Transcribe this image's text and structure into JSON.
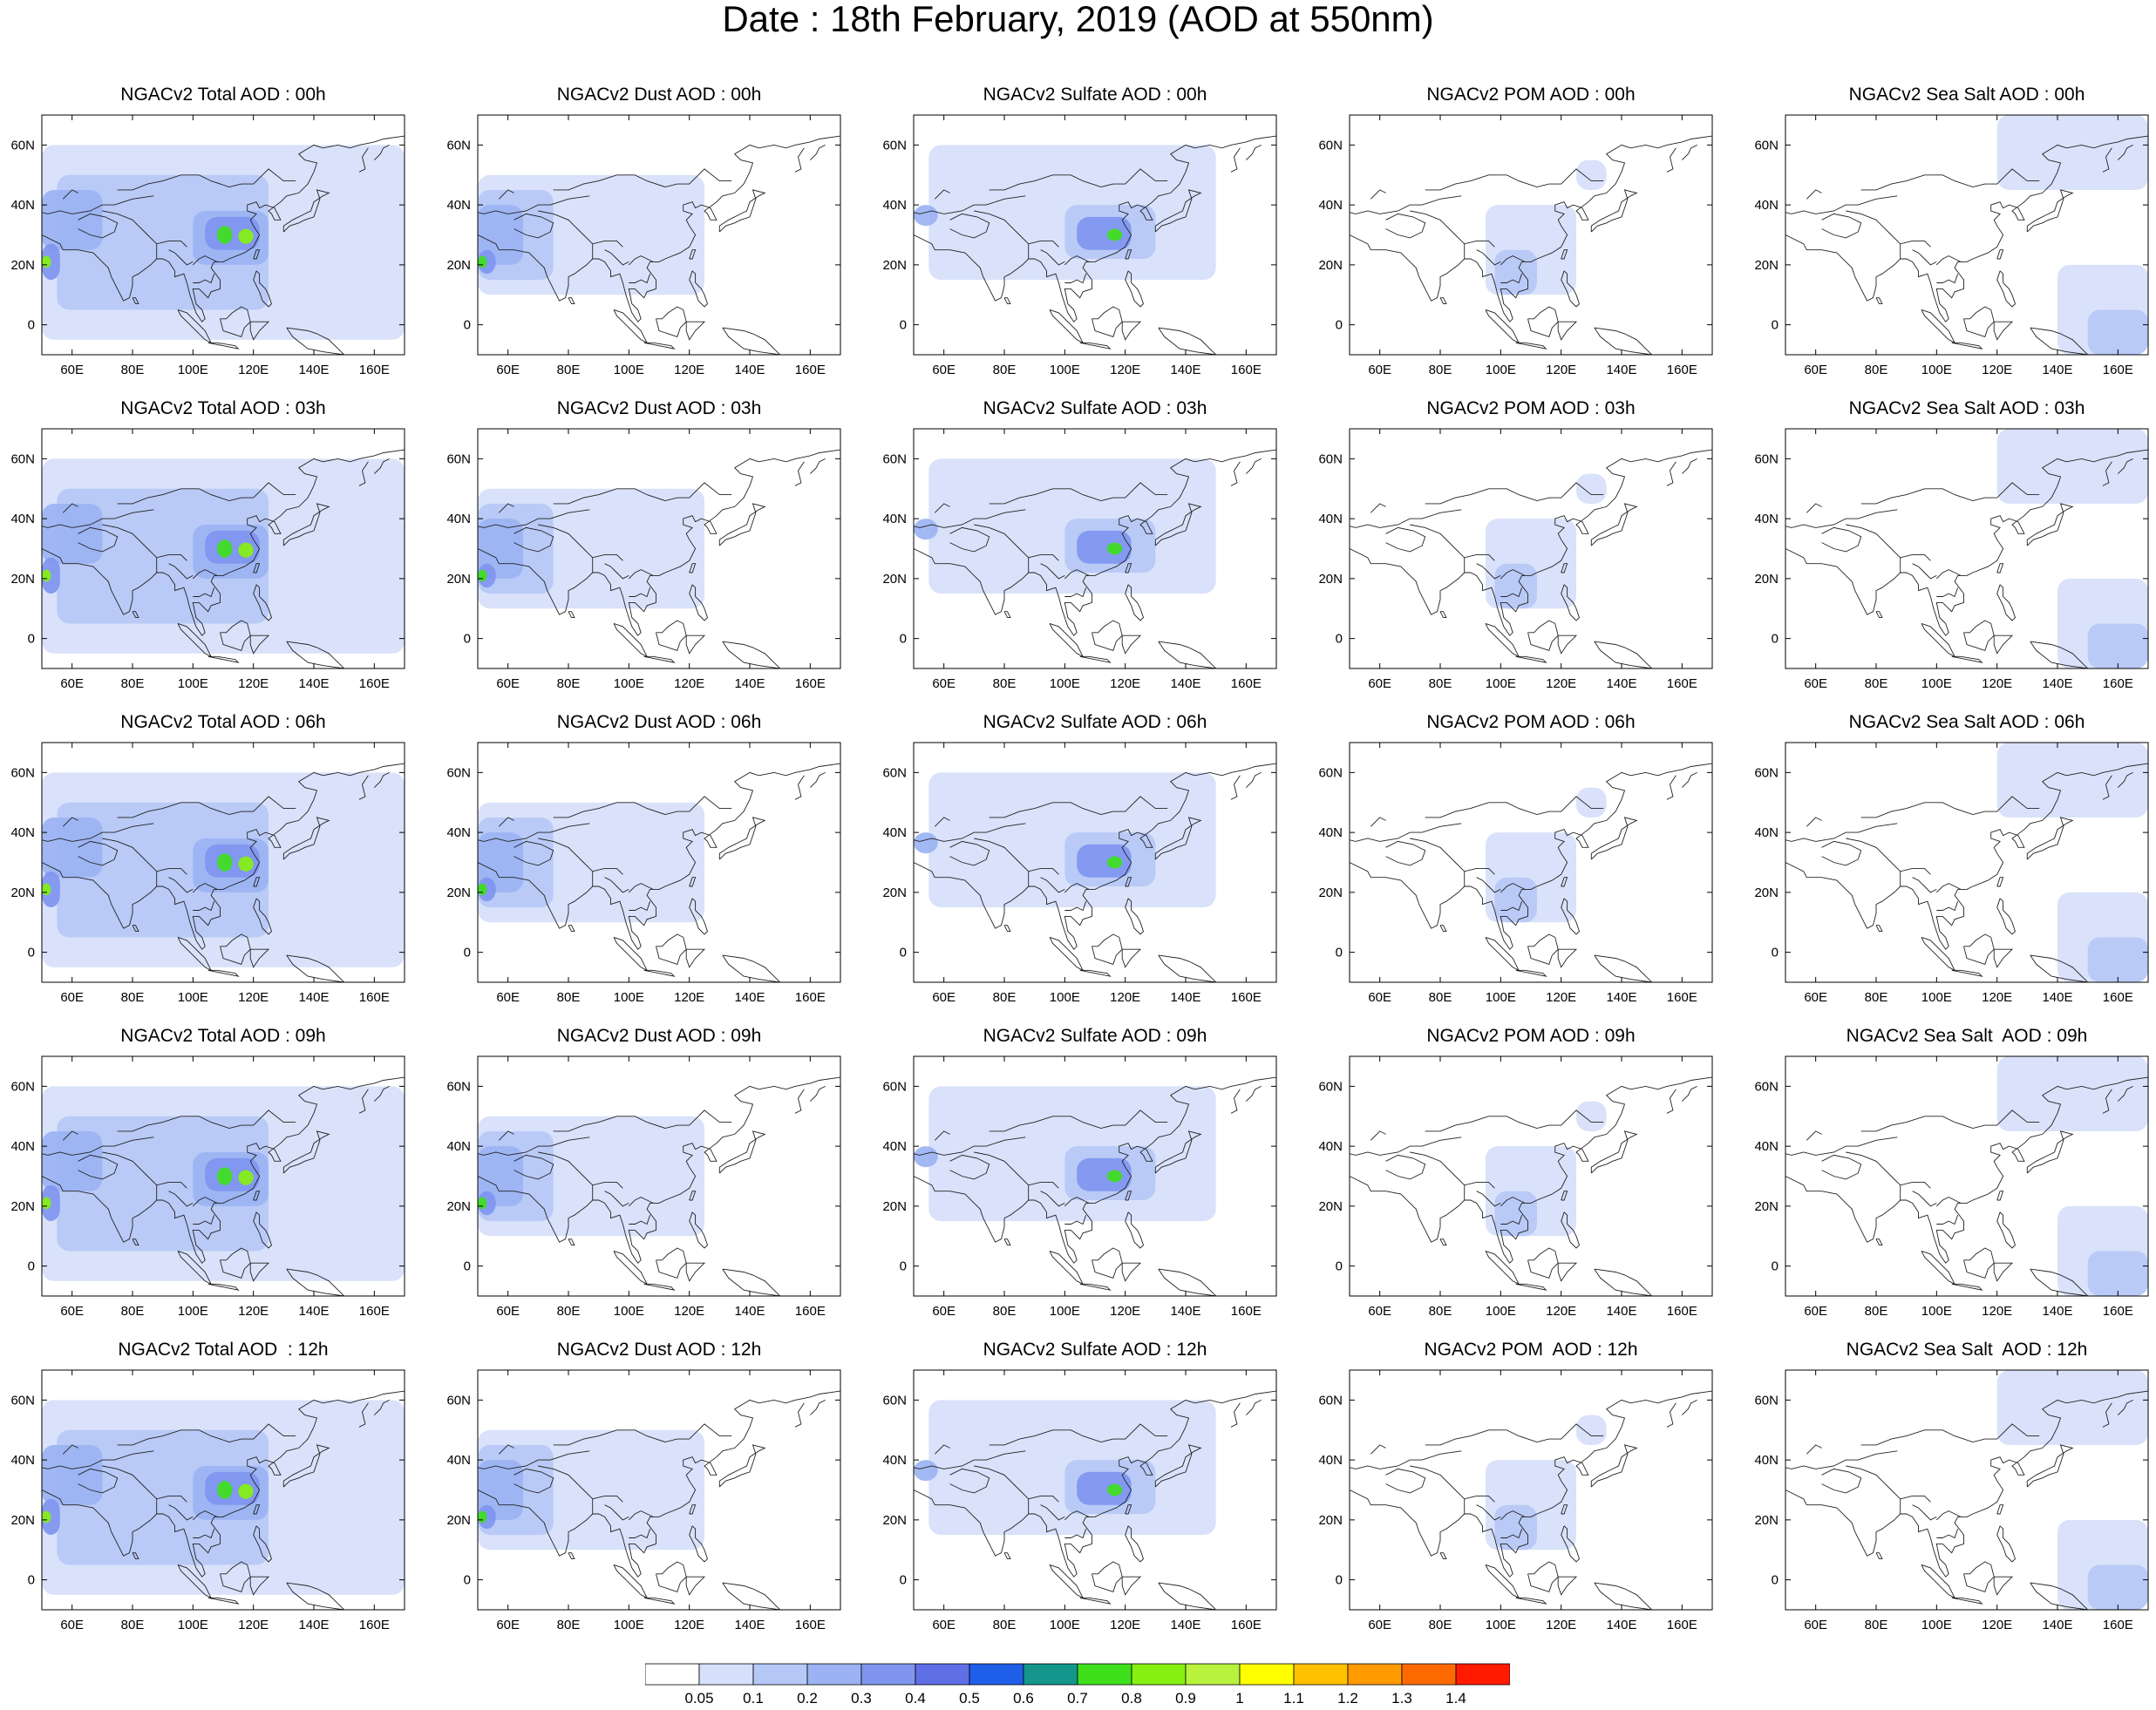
{
  "title": "Date : 18th February, 2019 (AOD at 550nm)",
  "lon_ticks": [
    "60E",
    "80E",
    "100E",
    "120E",
    "140E",
    "160E"
  ],
  "lat_ticks": [
    "60N",
    "40N",
    "20N",
    "0"
  ],
  "map_extent": {
    "lon": [
      50,
      170
    ],
    "lat": [
      -10,
      70
    ]
  },
  "species": [
    "total",
    "dust",
    "sulfate",
    "pom",
    "seasalt"
  ],
  "hours": [
    "00h",
    "03h",
    "06h",
    "09h",
    "12h"
  ],
  "panel_titles": [
    [
      "NGACv2 Total AOD : 00h",
      "NGACv2 Dust AOD : 00h",
      "NGACv2 Sulfate AOD : 00h",
      "NGACv2 POM AOD : 00h",
      "NGACv2 Sea Salt AOD : 00h"
    ],
    [
      "NGACv2 Total AOD : 03h",
      "NGACv2 Dust AOD : 03h",
      "NGACv2 Sulfate AOD : 03h",
      "NGACv2 POM AOD : 03h",
      "NGACv2 Sea Salt AOD : 03h"
    ],
    [
      "NGACv2 Total AOD : 06h",
      "NGACv2 Dust AOD : 06h",
      "NGACv2 Sulfate AOD : 06h",
      "NGACv2 POM AOD : 06h",
      "NGACv2 Sea Salt AOD : 06h"
    ],
    [
      "NGACv2 Total AOD : 09h",
      "NGACv2 Dust AOD : 09h",
      "NGACv2 Sulfate AOD : 09h",
      "NGACv2 POM AOD : 09h",
      "NGACv2 Sea Salt  AOD : 09h"
    ],
    [
      "NGACv2 Total AOD  : 12h",
      "NGACv2 Dust AOD : 12h",
      "NGACv2 Sulfate AOD : 12h",
      "NGACv2 POM  AOD : 12h",
      "NGACv2 Sea Salt  AOD : 12h"
    ]
  ],
  "colorbar": {
    "levels": [
      "0.05",
      "0.1",
      "0.2",
      "0.3",
      "0.4",
      "0.5",
      "0.6",
      "0.7",
      "0.8",
      "0.9",
      "1",
      "1.1",
      "1.2",
      "1.3",
      "1.4"
    ],
    "colors": [
      "#ffffff",
      "#d6e0fa",
      "#b6c8f6",
      "#9bb3f3",
      "#7f95ef",
      "#5f6fe6",
      "#1f5ee8",
      "#14968c",
      "#3ee01c",
      "#86f011",
      "#b8f23c",
      "#ffff00",
      "#ffc000",
      "#ff9a00",
      "#ff6a00",
      "#ff1a00"
    ]
  },
  "plumes": {
    "total": [
      {
        "lon": [
          50,
          170
        ],
        "lat": [
          -5,
          60
        ],
        "level": 1
      },
      {
        "lon": [
          55,
          125
        ],
        "lat": [
          5,
          50
        ],
        "level": 2
      },
      {
        "lon": [
          50,
          70
        ],
        "lat": [
          25,
          45
        ],
        "level": 3
      },
      {
        "lon": [
          100,
          125
        ],
        "lat": [
          20,
          38
        ],
        "level": 3
      },
      {
        "lon": [
          104,
          122
        ],
        "lat": [
          25,
          36
        ],
        "level": 4
      },
      {
        "lon": [
          50,
          56
        ],
        "lat": [
          15,
          27
        ],
        "level": 4
      },
      {
        "lon": [
          108,
          113
        ],
        "lat": [
          27,
          33
        ],
        "level": 8
      },
      {
        "lon": [
          115,
          120
        ],
        "lat": [
          27,
          32
        ],
        "level": 9
      },
      {
        "lon": [
          50,
          53
        ],
        "lat": [
          19,
          23
        ],
        "level": 9
      }
    ],
    "dust": [
      {
        "lon": [
          50,
          125
        ],
        "lat": [
          10,
          50
        ],
        "level": 1
      },
      {
        "lon": [
          50,
          75
        ],
        "lat": [
          15,
          45
        ],
        "level": 2
      },
      {
        "lon": [
          50,
          65
        ],
        "lat": [
          20,
          40
        ],
        "level": 3
      },
      {
        "lon": [
          50,
          56
        ],
        "lat": [
          17,
          25
        ],
        "level": 4
      },
      {
        "lon": [
          50,
          53
        ],
        "lat": [
          19,
          23
        ],
        "level": 8
      }
    ],
    "sulfate": [
      {
        "lon": [
          55,
          150
        ],
        "lat": [
          15,
          60
        ],
        "level": 1
      },
      {
        "lon": [
          100,
          130
        ],
        "lat": [
          22,
          40
        ],
        "level": 2
      },
      {
        "lon": [
          104,
          122
        ],
        "lat": [
          25,
          36
        ],
        "level": 4
      },
      {
        "lon": [
          50,
          58
        ],
        "lat": [
          33,
          40
        ],
        "level": 3
      },
      {
        "lon": [
          114,
          119
        ],
        "lat": [
          28,
          32
        ],
        "level": 8
      }
    ],
    "pom": [
      {
        "lon": [
          95,
          125
        ],
        "lat": [
          10,
          40
        ],
        "level": 1
      },
      {
        "lon": [
          98,
          112
        ],
        "lat": [
          10,
          25
        ],
        "level": 2
      },
      {
        "lon": [
          125,
          135
        ],
        "lat": [
          45,
          55
        ],
        "level": 1
      }
    ],
    "seasalt": [
      {
        "lon": [
          140,
          170
        ],
        "lat": [
          -10,
          20
        ],
        "level": 1
      },
      {
        "lon": [
          120,
          170
        ],
        "lat": [
          45,
          70
        ],
        "level": 1
      },
      {
        "lon": [
          150,
          170
        ],
        "lat": [
          -10,
          5
        ],
        "level": 2
      }
    ]
  }
}
